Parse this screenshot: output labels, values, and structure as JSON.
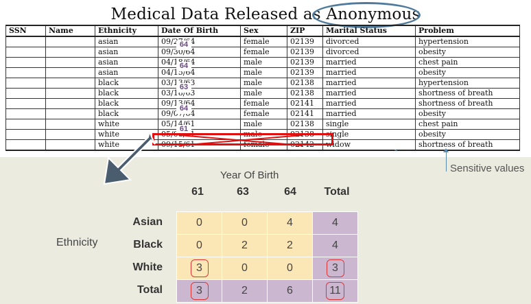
{
  "title": "Medical Data Released as Anonymous",
  "released_table": {
    "headers": [
      "SSN",
      "Name",
      "Ethnicity",
      "Date Of Birth",
      "Sex",
      "ZIP",
      "Marital Status",
      "Problem"
    ],
    "rows": [
      [
        "",
        "",
        "asian",
        "09/27/64",
        "female",
        "02139",
        "divorced",
        "hypertension"
      ],
      [
        "",
        "",
        "asian",
        "09/30/64",
        "female",
        "02139",
        "divorced",
        "obesity"
      ],
      [
        "",
        "",
        "asian",
        "04/18/64",
        "male",
        "02139",
        "married",
        "chest pain"
      ],
      [
        "",
        "",
        "asian",
        "04/15/64",
        "male",
        "02139",
        "married",
        "obesity"
      ],
      [
        "",
        "",
        "black",
        "03/13/63",
        "male",
        "02138",
        "married",
        "hypertension"
      ],
      [
        "",
        "",
        "black",
        "03/18/63",
        "male",
        "02138",
        "married",
        "shortness of breath"
      ],
      [
        "",
        "",
        "black",
        "09/13/64",
        "female",
        "02141",
        "married",
        "shortness of breath"
      ],
      [
        "",
        "",
        "black",
        "09/07/64",
        "female",
        "02141",
        "married",
        "obesity"
      ],
      [
        "",
        "",
        "white",
        "05/14/61",
        "male",
        "02138",
        "single",
        "chest pain"
      ],
      [
        "",
        "",
        "white",
        "05/08/61",
        "male",
        "02138",
        "single",
        "obesity"
      ],
      [
        "",
        "",
        "white",
        "09/15/61",
        "female",
        "02142",
        "widow",
        "shortness of breath"
      ]
    ],
    "year_groups": [
      "64",
      "64",
      "63",
      "64",
      "61"
    ]
  },
  "sensitive_label": "Sensitive values",
  "aggregate": {
    "col_axis_label": "Year Of Birth",
    "row_axis_label": "Ethnicity",
    "columns": [
      "61",
      "63",
      "64",
      "Total"
    ],
    "rows": [
      {
        "label": "Asian",
        "values": [
          "0",
          "0",
          "4",
          "4"
        ]
      },
      {
        "label": "Black",
        "values": [
          "0",
          "2",
          "2",
          "4"
        ]
      },
      {
        "label": "White",
        "values": [
          "3",
          "0",
          "0",
          "3"
        ]
      },
      {
        "label": "Total",
        "values": [
          "3",
          "2",
          "6",
          "11"
        ]
      }
    ]
  },
  "colors": {
    "cell": "#fbe6b6",
    "total_cell": "#cbb7cf",
    "panel": "#ebebe0",
    "highlight": "#e01010",
    "arrow": "#4a5d6f",
    "ellipse": "#4f7a9c"
  }
}
